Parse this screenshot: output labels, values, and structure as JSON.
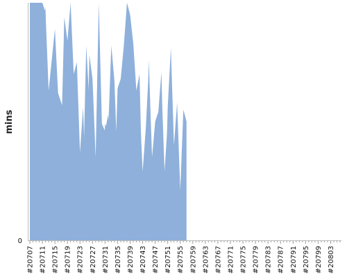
{
  "chart_data": {
    "type": "area",
    "title": "",
    "xlabel": "",
    "ylabel": "mins",
    "y_tick_labels": [
      "0"
    ],
    "x_start": 20707,
    "x_end": 20806,
    "x_label_step": 4,
    "x_label_prefix": "#",
    "y_range": [
      0,
      100
    ],
    "grid": false,
    "legend": "none",
    "colors": {
      "normal": "#8eb0db",
      "failed": "#ef5350"
    },
    "series": [
      {
        "status": "normal",
        "range": [
          20707,
          20753
        ],
        "values": [
          100,
          100,
          100,
          100,
          100,
          96,
          63,
          76,
          89,
          62,
          58,
          54,
          49,
          10,
          54,
          65,
          19,
          26,
          82,
          58,
          6,
          31,
          39,
          15,
          49,
          46,
          82,
          67,
          30,
          55,
          73,
          100,
          95,
          83,
          63,
          70,
          15,
          35,
          76,
          28,
          44,
          48,
          66,
          29,
          50,
          63,
          6
        ]
      },
      {
        "status": "normal",
        "range": [
          20708,
          20757
        ],
        "values": [
          94,
          38,
          72,
          91,
          98,
          15,
          41,
          62,
          58,
          42,
          94,
          84,
          100,
          70,
          75,
          37,
          56,
          15,
          78,
          68,
          35,
          100,
          49,
          46,
          53,
          32,
          21,
          64,
          68,
          82,
          100,
          63,
          70,
          39,
          58,
          29,
          47,
          73,
          35,
          50,
          54,
          71,
          6,
          56,
          81,
          40,
          58,
          21,
          55,
          50
        ]
      }
    ]
  }
}
